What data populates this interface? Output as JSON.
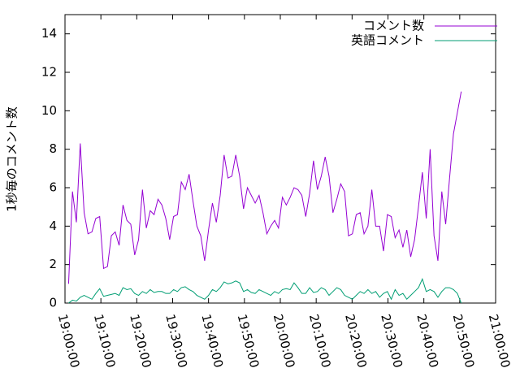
{
  "chart_data": {
    "type": "line",
    "ylabel": "1秒毎のコメント数",
    "x": [
      68460,
      68525,
      68590,
      68655,
      68720,
      68785,
      68850,
      68915,
      68980,
      69045,
      69110,
      69175,
      69240,
      69305,
      69370,
      69435,
      69500,
      69565,
      69630,
      69695,
      69760,
      69825,
      69890,
      69955,
      70020,
      70085,
      70150,
      70215,
      70280,
      70345,
      70410,
      70475,
      70540,
      70605,
      70670,
      70735,
      70800,
      70865,
      70930,
      70995,
      71060,
      71125,
      71190,
      71255,
      71320,
      71385,
      71450,
      71515,
      71580,
      71645,
      71710,
      71775,
      71840,
      71905,
      71970,
      72035,
      72100,
      72165,
      72230,
      72295,
      72360,
      72425,
      72490,
      72555,
      72620,
      72685,
      72750,
      72815,
      72880,
      72945,
      73010,
      73075,
      73140,
      73205,
      73270,
      73335,
      73400,
      73465,
      73530,
      73595,
      73660,
      73725,
      73790,
      73855,
      73920,
      73985,
      74050,
      74115,
      74180,
      74245,
      74310,
      74375,
      74440,
      74505,
      74570,
      74635,
      74700,
      74765,
      74830,
      74895,
      74960,
      75025
    ],
    "series": [
      {
        "name": "コメント数",
        "color": "#9400d3",
        "values": [
          1.0,
          5.8,
          4.2,
          8.3,
          4.7,
          3.6,
          3.7,
          4.4,
          4.5,
          1.8,
          1.9,
          3.5,
          3.7,
          3.0,
          5.1,
          4.3,
          4.1,
          2.5,
          3.3,
          5.9,
          3.9,
          4.8,
          4.6,
          5.4,
          5.1,
          4.4,
          3.3,
          4.5,
          4.6,
          6.3,
          5.9,
          6.7,
          5.3,
          4.0,
          3.5,
          2.2,
          3.8,
          5.2,
          4.2,
          5.6,
          7.7,
          6.5,
          6.6,
          7.7,
          6.6,
          4.9,
          6.0,
          5.6,
          5.2,
          5.6,
          4.7,
          3.6,
          4.0,
          4.3,
          3.9,
          5.5,
          5.1,
          5.5,
          6.0,
          5.9,
          5.6,
          4.5,
          5.7,
          7.4,
          5.9,
          6.6,
          7.6,
          6.6,
          4.7,
          5.4,
          6.2,
          5.8,
          3.5,
          3.6,
          4.6,
          4.7,
          3.6,
          4.0,
          5.9,
          4.0,
          4.0,
          2.7,
          4.6,
          4.5,
          3.4,
          3.8,
          2.9,
          3.8,
          2.4,
          3.3,
          5.0,
          6.8,
          4.4,
          8.0,
          3.5,
          2.2,
          5.8,
          4.1,
          6.5,
          8.8,
          9.9,
          11.0
        ]
      },
      {
        "name": "英語コメント",
        "color": "#009e73",
        "values": [
          0.0,
          0.15,
          0.1,
          0.3,
          0.4,
          0.3,
          0.2,
          0.5,
          0.75,
          0.35,
          0.4,
          0.45,
          0.5,
          0.4,
          0.8,
          0.7,
          0.75,
          0.5,
          0.4,
          0.6,
          0.5,
          0.7,
          0.55,
          0.6,
          0.6,
          0.5,
          0.5,
          0.7,
          0.6,
          0.8,
          0.85,
          0.7,
          0.6,
          0.4,
          0.3,
          0.2,
          0.4,
          0.7,
          0.6,
          0.8,
          1.1,
          1.0,
          1.05,
          1.15,
          1.05,
          0.6,
          0.7,
          0.55,
          0.5,
          0.7,
          0.6,
          0.5,
          0.4,
          0.6,
          0.5,
          0.7,
          0.75,
          0.7,
          1.05,
          0.8,
          0.5,
          0.5,
          0.8,
          0.55,
          0.6,
          0.8,
          0.7,
          0.4,
          0.6,
          0.8,
          0.7,
          0.4,
          0.3,
          0.2,
          0.4,
          0.6,
          0.5,
          0.7,
          0.5,
          0.6,
          0.3,
          0.5,
          0.6,
          0.2,
          0.7,
          0.4,
          0.5,
          0.2,
          0.4,
          0.6,
          0.8,
          1.25,
          0.6,
          0.7,
          0.6,
          0.3,
          0.6,
          0.8,
          0.8,
          0.7,
          0.5,
          0.0
        ]
      }
    ],
    "xlim": [
      68400,
      75600
    ],
    "xticks": [
      {
        "value": 68400,
        "label": "19:00:00"
      },
      {
        "value": 69000,
        "label": "19:10:00"
      },
      {
        "value": 69600,
        "label": "19:20:00"
      },
      {
        "value": 70200,
        "label": "19:30:00"
      },
      {
        "value": 70800,
        "label": "19:40:00"
      },
      {
        "value": 71400,
        "label": "19:50:00"
      },
      {
        "value": 72000,
        "label": "20:00:00"
      },
      {
        "value": 72600,
        "label": "20:10:00"
      },
      {
        "value": 73200,
        "label": "20:20:00"
      },
      {
        "value": 73800,
        "label": "20:30:00"
      },
      {
        "value": 74400,
        "label": "20:40:00"
      },
      {
        "value": 75000,
        "label": "20:50:00"
      },
      {
        "value": 75600,
        "label": "21:00:00"
      }
    ],
    "ylim": [
      0,
      15
    ],
    "yticks": [
      0,
      2,
      4,
      6,
      8,
      10,
      12,
      14
    ],
    "legend": "top-right"
  }
}
